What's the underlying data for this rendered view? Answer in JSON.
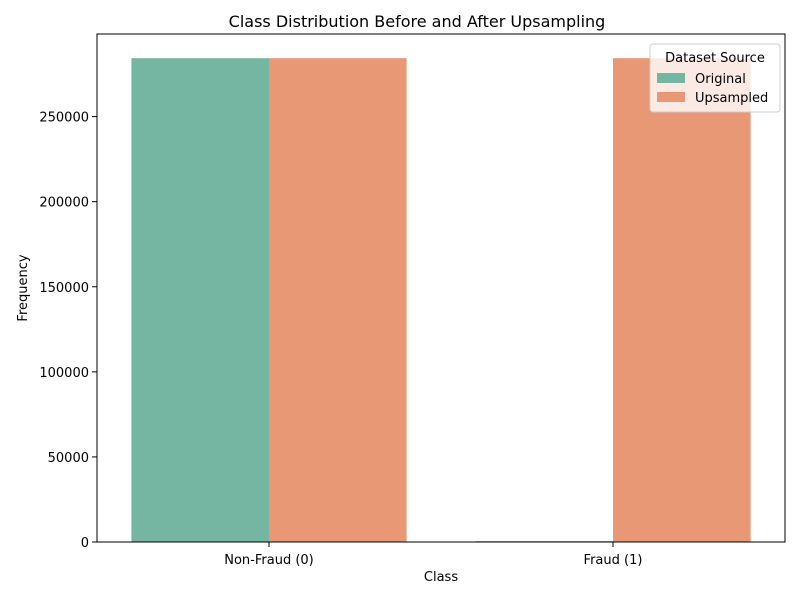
{
  "chart_data": {
    "type": "bar",
    "title": "Class Distribution Before and After Upsampling",
    "xlabel": "Class",
    "ylabel": "Frequency",
    "categories": [
      "Non-Fraud (0)",
      "Fraud (1)"
    ],
    "series": [
      {
        "name": "Original",
        "values": [
          284315,
          492
        ],
        "color": "#74b6a2"
      },
      {
        "name": "Upsampled",
        "values": [
          284315,
          284315
        ],
        "color": "#e99875"
      }
    ],
    "yticks": [
      0,
      50000,
      100000,
      150000,
      200000,
      250000
    ],
    "ylim": [
      0,
      298531
    ],
    "legend": {
      "title": "Dataset Source",
      "position": "top-right"
    },
    "grid": false
  }
}
